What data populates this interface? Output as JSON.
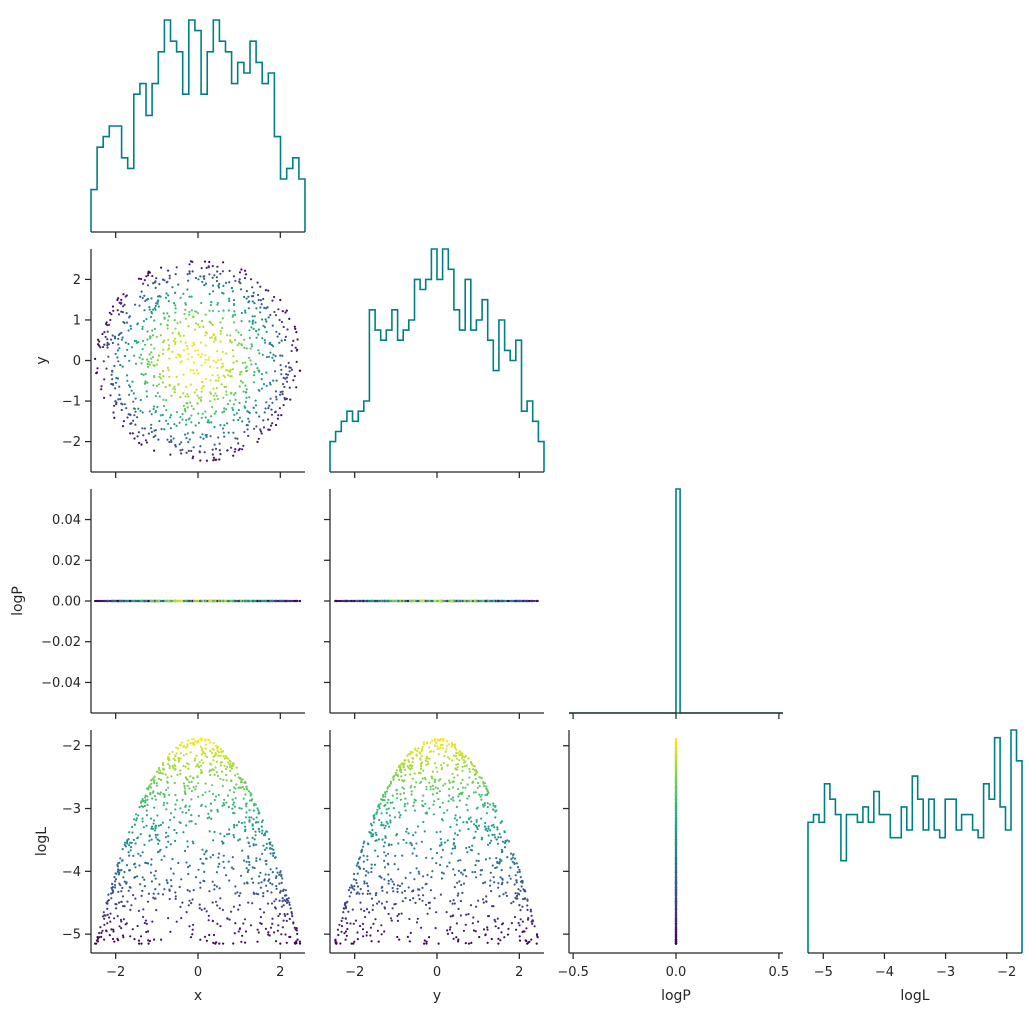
{
  "chart_data": {
    "type": "scatter",
    "title": "",
    "params": [
      "x",
      "y",
      "logP",
      "logL"
    ],
    "hist_color": "#008080",
    "colormap": "viridis",
    "color_by": "logL",
    "ranges": {
      "x": [
        -2.6,
        2.6
      ],
      "y": [
        -2.6,
        2.6
      ],
      "logP": [
        -0.52,
        0.52
      ],
      "logL": [
        -5.25,
        -1.75
      ]
    },
    "scatter_ylims": {
      "y": [
        -2.75,
        2.75
      ],
      "logP": [
        -0.055,
        0.055
      ],
      "logL": [
        -5.3,
        -1.75
      ]
    },
    "ticks": {
      "x": {
        "values": [
          -2,
          0,
          2
        ],
        "labels": [
          "−2",
          "0",
          "2"
        ]
      },
      "y": {
        "values": [
          -2,
          0,
          2
        ],
        "labels": [
          "−2",
          "0",
          "2"
        ]
      },
      "y_row": {
        "values": [
          -2,
          -1,
          0,
          1,
          2
        ],
        "labels": [
          "−2",
          "−1",
          "0",
          "1",
          "2"
        ]
      },
      "logP": {
        "values": [
          -0.5,
          0.0,
          0.5
        ],
        "labels": [
          "−0.5",
          "0.0",
          "0.5"
        ]
      },
      "logP_row": {
        "values": [
          -0.04,
          -0.02,
          0.0,
          0.02,
          0.04
        ],
        "labels": [
          "−0.04",
          "−0.02",
          "0.00",
          "0.02",
          "0.04"
        ]
      },
      "logL": {
        "values": [
          -5,
          -4,
          -3,
          -2
        ],
        "labels": [
          "−5",
          "−4",
          "−3",
          "−2"
        ]
      }
    },
    "histograms": {
      "x": {
        "edges": [
          -2.6,
          2.6
        ],
        "counts": [
          4,
          8,
          9,
          10,
          10,
          7,
          6,
          13,
          14,
          11,
          14,
          17,
          20,
          18,
          17,
          13,
          20,
          19,
          13,
          17,
          20,
          18,
          17,
          14,
          16,
          15,
          18,
          16,
          14,
          15,
          9,
          5,
          6,
          7,
          5
        ]
      },
      "y": {
        "edges": [
          -2.6,
          2.6
        ],
        "counts": [
          3,
          4,
          5,
          6,
          5,
          6,
          7,
          16,
          14,
          13,
          14,
          16,
          13,
          14,
          15,
          19,
          18,
          19,
          22,
          19,
          22,
          20,
          16,
          14,
          19,
          14,
          15,
          17,
          13,
          10,
          15,
          12,
          11,
          13,
          6,
          7,
          5,
          3
        ]
      },
      "logP": {
        "edges": [
          -0.52,
          0.52
        ],
        "counts": [
          0,
          0,
          0,
          0,
          0,
          0,
          0,
          0,
          0,
          0,
          0,
          0,
          0,
          0,
          0,
          0,
          0,
          0,
          0,
          0,
          0,
          0,
          0,
          0,
          0,
          0,
          1000,
          0,
          0,
          0,
          0,
          0,
          0,
          0,
          0,
          0,
          0,
          0,
          0,
          0,
          0,
          0,
          0,
          0,
          0,
          0,
          0,
          0,
          0,
          0,
          0,
          0
        ]
      },
      "logL": {
        "edges": [
          -5.25,
          -1.75
        ],
        "counts": [
          17,
          18,
          17,
          22,
          20,
          18,
          12,
          18,
          18,
          17,
          19,
          17,
          21,
          18,
          18,
          15,
          15,
          19,
          16,
          23,
          20,
          16,
          20,
          16,
          15,
          20,
          20,
          16,
          18,
          18,
          16,
          15,
          22,
          20,
          28,
          19,
          16,
          29,
          25
        ]
      }
    },
    "scatter": {
      "n_points": 1000,
      "x_y_domain": "disk of radius 2.5",
      "logP_value": 0.0,
      "logL_range": [
        -5.15,
        -1.87
      ]
    }
  }
}
